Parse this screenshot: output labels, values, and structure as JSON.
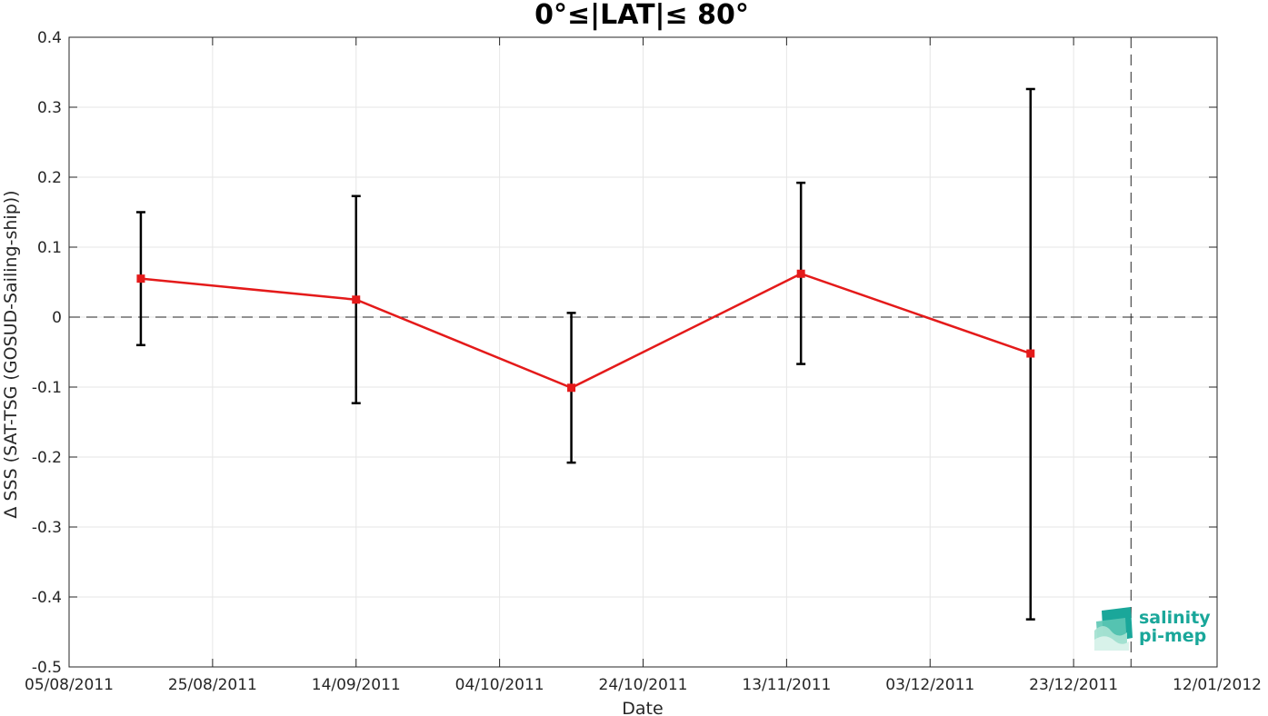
{
  "chart_data": {
    "type": "line",
    "title": "0°≤|LAT|≤ 80°",
    "xlabel": "Date",
    "ylabel": "Δ SSS (SAT-TSG (GOSUD-Sailing-ship))",
    "x_ticks": [
      "05/08/2011",
      "25/08/2011",
      "14/09/2011",
      "04/10/2011",
      "24/10/2011",
      "13/11/2011",
      "03/12/2011",
      "23/12/2011",
      "12/01/2012"
    ],
    "y_ticks": [
      "-0.5",
      "-0.4",
      "-0.3",
      "-0.2",
      "-0.1",
      "0",
      "0.1",
      "0.2",
      "0.3",
      "0.4"
    ],
    "xlim": [
      "2011-08-05",
      "2012-01-12"
    ],
    "ylim": [
      -0.5,
      0.4
    ],
    "grid": true,
    "zero_line": true,
    "vertical_line_date": "2011-12-31",
    "series": [
      {
        "color": "#e41a1a",
        "x": [
          "2011-08-15",
          "2011-09-14",
          "2011-10-14",
          "2011-11-15",
          "2011-12-17"
        ],
        "y": [
          0.055,
          0.025,
          -0.101,
          0.062,
          -0.052
        ],
        "error_low": [
          -0.04,
          -0.123,
          -0.208,
          -0.067,
          -0.432
        ],
        "error_high": [
          0.15,
          0.173,
          0.006,
          0.192,
          0.326
        ]
      }
    ]
  },
  "logo": {
    "line1": "salinity",
    "line2": "pi-mep",
    "accent": "#1aa79a"
  }
}
